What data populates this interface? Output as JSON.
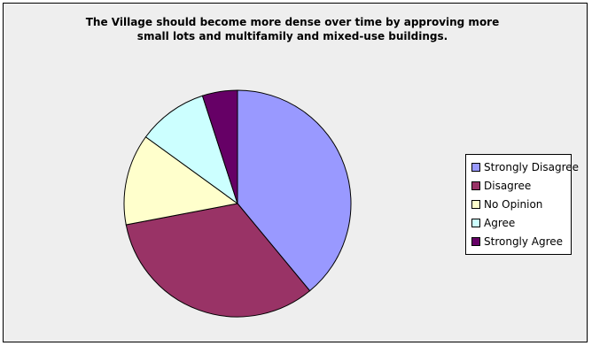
{
  "chart_data": {
    "type": "pie",
    "title": "The Village should become more dense over time by approving more small lots and multifamily and mixed-use buildings.",
    "title_lines": [
      "The Village should become more dense over time by approving more",
      "small lots and multifamily and mixed-use buildings."
    ],
    "legend_position": "right",
    "slices": [
      {
        "label": "Strongly Disagree",
        "value": 39,
        "color": "#9999ff"
      },
      {
        "label": "Disagree",
        "value": 33,
        "color": "#993366"
      },
      {
        "label": "No Opinion",
        "value": 13,
        "color": "#ffffcc"
      },
      {
        "label": "Agree",
        "value": 10,
        "color": "#ccffff"
      },
      {
        "label": "Strongly Agree",
        "value": 5,
        "color": "#660066"
      }
    ]
  }
}
